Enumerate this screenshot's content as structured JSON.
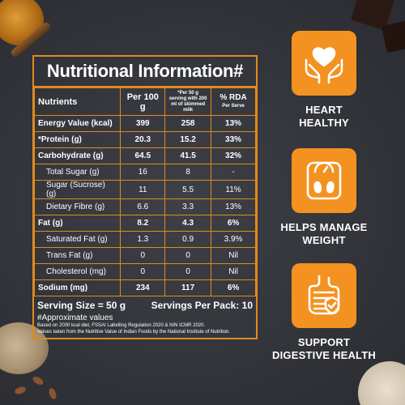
{
  "table": {
    "title": "Nutritional Information#",
    "headers": {
      "nutrients": "Nutrients",
      "per100": "Per 100 g",
      "per50": "*Per 50 g serving with 200 ml of skimmed milk",
      "rda": "% RDA",
      "rda_sub": "Per Serve"
    },
    "rows": [
      {
        "name": "Energy Value (kcal)",
        "per100": "399",
        "per50": "258",
        "rda": "13%"
      },
      {
        "name": "*Protein (g)",
        "per100": "20.3",
        "per50": "15.2",
        "rda": "33%"
      },
      {
        "name": "Carbohydrate (g)",
        "per100": "64.5",
        "per50": "41.5",
        "rda": "32%"
      },
      {
        "name": "Total Sugar (g)",
        "per100": "16",
        "per50": "8",
        "rda": "-"
      },
      {
        "name": "Sugar (Sucrose) (g)",
        "per100": "11",
        "per50": "5.5",
        "rda": "11%"
      },
      {
        "name": "Dietary Fibre (g)",
        "per100": "6.6",
        "per50": "3.3",
        "rda": "13%"
      },
      {
        "name": "Fat (g)",
        "per100": "8.2",
        "per50": "4.3",
        "rda": "6%"
      },
      {
        "name": "Saturated Fat (g)",
        "per100": "1.3",
        "per50": "0.9",
        "rda": "3.9%"
      },
      {
        "name": "Trans Fat (g)",
        "per100": "0",
        "per50": "0",
        "rda": "Nil"
      },
      {
        "name": "Cholesterol (mg)",
        "per100": "0",
        "per50": "0",
        "rda": "Nil"
      },
      {
        "name": "Sodium (mg)",
        "per100": "234",
        "per50": "117",
        "rda": "6%"
      }
    ],
    "serving_size": "Serving Size = 50 g",
    "servings_per_pack": "Servings Per Pack: 10",
    "approx": "#Approximate values",
    "note1": "Based on 2000 kcal diet, FSSAI Labelling Regulation 2020 & NIN ICMR 2020.",
    "note2": "Values taken from the Nutritive Value of Indian Foods by the National Institute of Nutrition."
  },
  "benefits": [
    {
      "label1": "HEART",
      "label2": "HEALTHY",
      "icon": "heart-hands-icon"
    },
    {
      "label1": "HELPS MANAGE",
      "label2": "WEIGHT",
      "icon": "weighing-scale-icon"
    },
    {
      "label1": "SUPPORT",
      "label2": "DIGESTIVE HEALTH",
      "icon": "digestive-system-icon"
    }
  ],
  "colors": {
    "accent": "#e08a1e",
    "badge": "#f39220",
    "background": "#35373d"
  }
}
